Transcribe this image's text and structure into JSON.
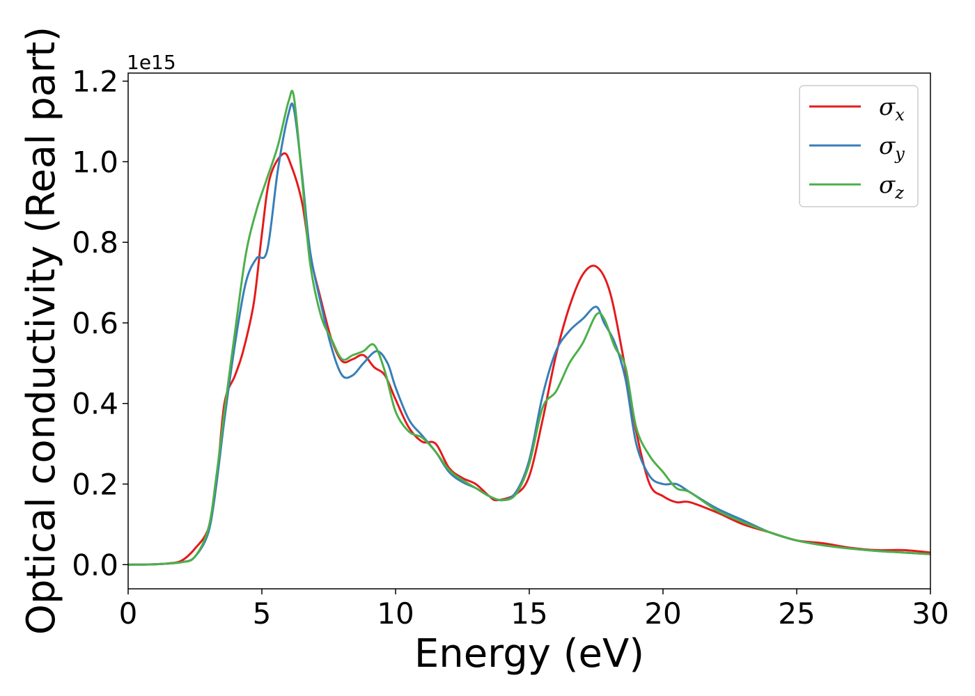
{
  "chart_data": {
    "type": "line",
    "xlabel": "Energy (eV)",
    "ylabel": "Optical conductivity (Real part)",
    "y_offset_label": "1e15",
    "xlim": [
      0,
      30
    ],
    "ylim": [
      -0.06,
      1.22
    ],
    "xticks": [
      0,
      5,
      10,
      15,
      20,
      25,
      30
    ],
    "yticks": [
      0.0,
      0.2,
      0.4,
      0.6,
      0.8,
      1.0,
      1.2
    ],
    "xtick_labels": [
      "0",
      "5",
      "10",
      "15",
      "20",
      "25",
      "30"
    ],
    "ytick_labels": [
      "0.0",
      "0.2",
      "0.4",
      "0.6",
      "0.8",
      "1.0",
      "1.2"
    ],
    "grid": false,
    "legend_position": "top-right",
    "series": [
      {
        "name": "σx",
        "symbol": "σ",
        "subscript": "x",
        "color": "#e41a1c",
        "x": [
          0,
          1,
          1.5,
          2,
          2.5,
          3,
          3.3,
          3.6,
          4,
          4.3,
          4.7,
          5,
          5.3,
          5.8,
          6.1,
          6.5,
          6.8,
          7.2,
          7.6,
          8,
          8.4,
          8.8,
          9.2,
          9.6,
          10,
          10.5,
          11,
          11.5,
          12,
          12.5,
          13,
          13.5,
          13.8,
          14.5,
          15,
          15.5,
          16,
          16.5,
          17,
          17.5,
          18,
          18.5,
          19,
          19.5,
          20,
          20.5,
          21,
          22,
          23,
          24,
          25,
          26,
          27,
          28,
          29,
          30
        ],
        "y": [
          0,
          0.001,
          0.003,
          0.01,
          0.04,
          0.09,
          0.2,
          0.4,
          0.47,
          0.53,
          0.65,
          0.82,
          0.96,
          1.02,
          0.99,
          0.9,
          0.77,
          0.66,
          0.56,
          0.505,
          0.51,
          0.52,
          0.49,
          0.47,
          0.41,
          0.34,
          0.305,
          0.3,
          0.24,
          0.215,
          0.2,
          0.17,
          0.16,
          0.175,
          0.22,
          0.36,
          0.52,
          0.64,
          0.72,
          0.74,
          0.68,
          0.52,
          0.33,
          0.2,
          0.17,
          0.155,
          0.155,
          0.13,
          0.1,
          0.08,
          0.06,
          0.053,
          0.042,
          0.036,
          0.036,
          0.03
        ]
      },
      {
        "name": "σy",
        "symbol": "σ",
        "subscript": "y",
        "color": "#377eb8",
        "x": [
          0,
          1,
          2,
          2.5,
          3,
          3.3,
          3.6,
          4,
          4.4,
          4.8,
          5.2,
          5.6,
          6,
          6.2,
          6.5,
          6.8,
          7.2,
          7.6,
          8,
          8.4,
          8.8,
          9.3,
          9.7,
          10,
          10.5,
          11,
          11.5,
          12,
          12.5,
          13,
          13.5,
          14,
          14.5,
          15,
          15.5,
          16,
          16.5,
          17,
          17.5,
          17.8,
          18.2,
          18.6,
          19,
          19.5,
          20,
          20.5,
          21,
          22,
          23,
          24,
          25,
          26,
          27,
          28,
          29,
          30
        ],
        "y": [
          0,
          0.001,
          0.006,
          0.02,
          0.08,
          0.2,
          0.36,
          0.55,
          0.7,
          0.76,
          0.78,
          0.98,
          1.12,
          1.13,
          0.97,
          0.78,
          0.65,
          0.54,
          0.47,
          0.47,
          0.5,
          0.53,
          0.5,
          0.44,
          0.36,
          0.32,
          0.28,
          0.23,
          0.205,
          0.19,
          0.17,
          0.16,
          0.18,
          0.26,
          0.42,
          0.53,
          0.58,
          0.61,
          0.64,
          0.6,
          0.55,
          0.46,
          0.3,
          0.22,
          0.2,
          0.2,
          0.18,
          0.14,
          0.11,
          0.08,
          0.06,
          0.048,
          0.04,
          0.034,
          0.03,
          0.026
        ]
      },
      {
        "name": "σz",
        "symbol": "σ",
        "subscript": "z",
        "color": "#4daf4a",
        "x": [
          0,
          1,
          2,
          2.5,
          3,
          3.3,
          3.6,
          4,
          4.4,
          4.8,
          5.2,
          5.6,
          6,
          6.2,
          6.5,
          6.8,
          7.2,
          7.6,
          8,
          8.4,
          8.8,
          9.2,
          9.6,
          10,
          10.5,
          11,
          11.5,
          12,
          12.5,
          13,
          13.5,
          14,
          14.5,
          15,
          15.5,
          16,
          16.5,
          17,
          17.5,
          17.8,
          18.2,
          18.6,
          19,
          19.5,
          20,
          20.5,
          21,
          22,
          23,
          24,
          25,
          26,
          27,
          28,
          29,
          30
        ],
        "y": [
          0,
          0.001,
          0.006,
          0.02,
          0.09,
          0.22,
          0.38,
          0.58,
          0.77,
          0.88,
          0.96,
          1.04,
          1.15,
          1.16,
          0.96,
          0.75,
          0.62,
          0.56,
          0.51,
          0.52,
          0.53,
          0.545,
          0.48,
          0.38,
          0.33,
          0.315,
          0.28,
          0.235,
          0.21,
          0.19,
          0.17,
          0.16,
          0.175,
          0.25,
          0.39,
          0.43,
          0.5,
          0.55,
          0.62,
          0.61,
          0.54,
          0.49,
          0.34,
          0.27,
          0.23,
          0.19,
          0.18,
          0.135,
          0.105,
          0.08,
          0.06,
          0.048,
          0.04,
          0.034,
          0.03,
          0.026
        ]
      }
    ]
  }
}
